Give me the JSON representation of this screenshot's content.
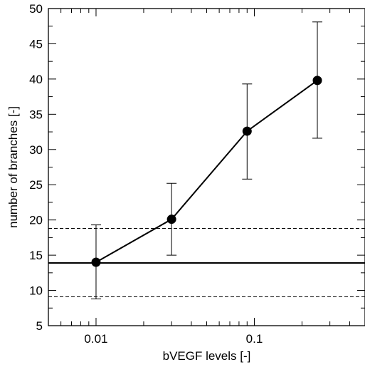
{
  "chart_data": {
    "type": "scatter",
    "title": "",
    "xlabel": "bVEGF levels [-]",
    "ylabel": "number of branches [-]",
    "xscale": "log",
    "xlim": [
      0.005,
      0.5
    ],
    "ylim": [
      5,
      50
    ],
    "grid": false,
    "legend": "none",
    "x_ticks": [
      {
        "value": 0.01,
        "label": "0.01"
      },
      {
        "value": 0.1,
        "label": "0.1"
      }
    ],
    "y_ticks": [
      {
        "value": 5,
        "label": "5"
      },
      {
        "value": 10,
        "label": "10"
      },
      {
        "value": 15,
        "label": "15"
      },
      {
        "value": 20,
        "label": "20"
      },
      {
        "value": 25,
        "label": "25"
      },
      {
        "value": 30,
        "label": "30"
      },
      {
        "value": 35,
        "label": "35"
      },
      {
        "value": 40,
        "label": "40"
      },
      {
        "value": 45,
        "label": "45"
      },
      {
        "value": 50,
        "label": "50"
      }
    ],
    "series": [
      {
        "style": "line-with-markers",
        "color": "#000000",
        "points": [
          {
            "x": 0.01,
            "y": 14.0,
            "err_low": 8.8,
            "err_high": 19.3
          },
          {
            "x": 0.03,
            "y": 20.1,
            "err_low": 15.0,
            "err_high": 25.2
          },
          {
            "x": 0.09,
            "y": 32.6,
            "err_low": 25.8,
            "err_high": 39.3
          },
          {
            "x": 0.25,
            "y": 39.8,
            "err_low": 31.6,
            "err_high": 48.1
          }
        ]
      }
    ],
    "reference_lines": [
      {
        "y": 13.9,
        "style": "solid",
        "color": "#000000"
      },
      {
        "y": 18.8,
        "style": "dashed",
        "color": "#000000"
      },
      {
        "y": 9.1,
        "style": "dashed",
        "color": "#000000"
      }
    ]
  }
}
